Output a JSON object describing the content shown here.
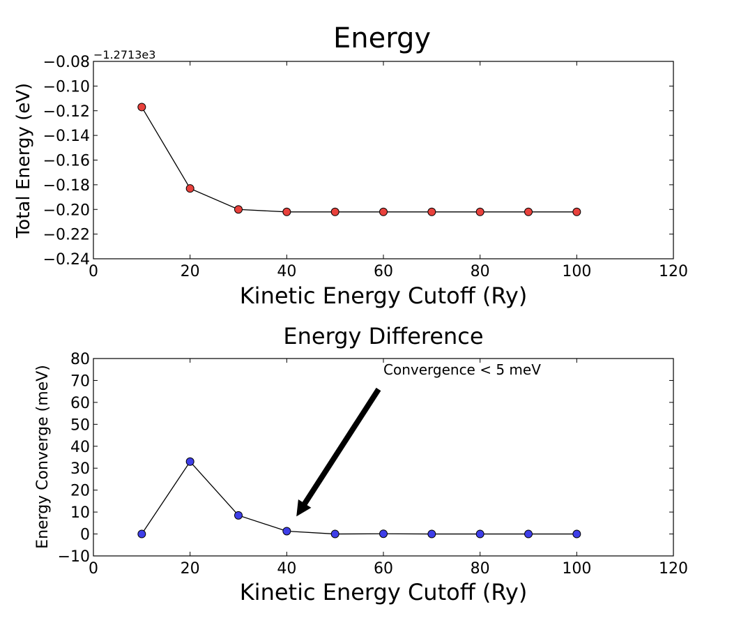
{
  "chart_data": [
    {
      "type": "line",
      "title": "Energy",
      "xlabel": "Kinetic Energy Cutoff (Ry)",
      "ylabel": "Total Energy (eV)",
      "offset_text": "−1.2713e3",
      "xlim": [
        0,
        120
      ],
      "ylim": [
        -0.24,
        -0.08
      ],
      "xticks": [
        0,
        20,
        40,
        60,
        80,
        100,
        120
      ],
      "xtick_labels": [
        "0",
        "20",
        "40",
        "60",
        "80",
        "100",
        "120"
      ],
      "yticks": [
        -0.24,
        -0.22,
        -0.2,
        -0.18,
        -0.16,
        -0.14,
        -0.12,
        -0.1,
        -0.08
      ],
      "ytick_labels": [
        "−0.24",
        "−0.22",
        "−0.20",
        "−0.18",
        "−0.16",
        "−0.14",
        "−0.12",
        "−0.10",
        "−0.08"
      ],
      "grid": false,
      "marker_color": "#e8413c",
      "line_color": "#000000",
      "x": [
        10,
        20,
        30,
        40,
        50,
        60,
        70,
        80,
        90,
        100
      ],
      "y": [
        -0.117,
        -0.183,
        -0.2,
        -0.202,
        -0.202,
        -0.202,
        -0.202,
        -0.202,
        -0.202,
        -0.202
      ]
    },
    {
      "type": "line",
      "title": "Energy Difference",
      "xlabel": "Kinetic Energy Cutoff (Ry)",
      "ylabel": "Energy Converge (meV)",
      "xlim": [
        0,
        120
      ],
      "ylim": [
        -10,
        80
      ],
      "xticks": [
        0,
        20,
        40,
        60,
        80,
        100,
        120
      ],
      "xtick_labels": [
        "0",
        "20",
        "40",
        "60",
        "80",
        "100",
        "120"
      ],
      "yticks": [
        -10,
        0,
        10,
        20,
        30,
        40,
        50,
        60,
        70,
        80
      ],
      "ytick_labels": [
        "−10",
        "0",
        "10",
        "20",
        "30",
        "40",
        "50",
        "60",
        "70",
        "80"
      ],
      "grid": false,
      "marker_color": "#3e3ee8",
      "line_color": "#000000",
      "x": [
        10,
        20,
        30,
        40,
        50,
        60,
        70,
        80,
        90,
        100
      ],
      "y": [
        0,
        33,
        8.5,
        1.3,
        0,
        0.1,
        0,
        0,
        0,
        0
      ],
      "annotation": {
        "text": "Convergence < 5 meV",
        "text_xy": [
          60,
          72
        ],
        "arrow_tail": [
          59,
          66
        ],
        "arrow_head": [
          42,
          8
        ]
      }
    }
  ]
}
